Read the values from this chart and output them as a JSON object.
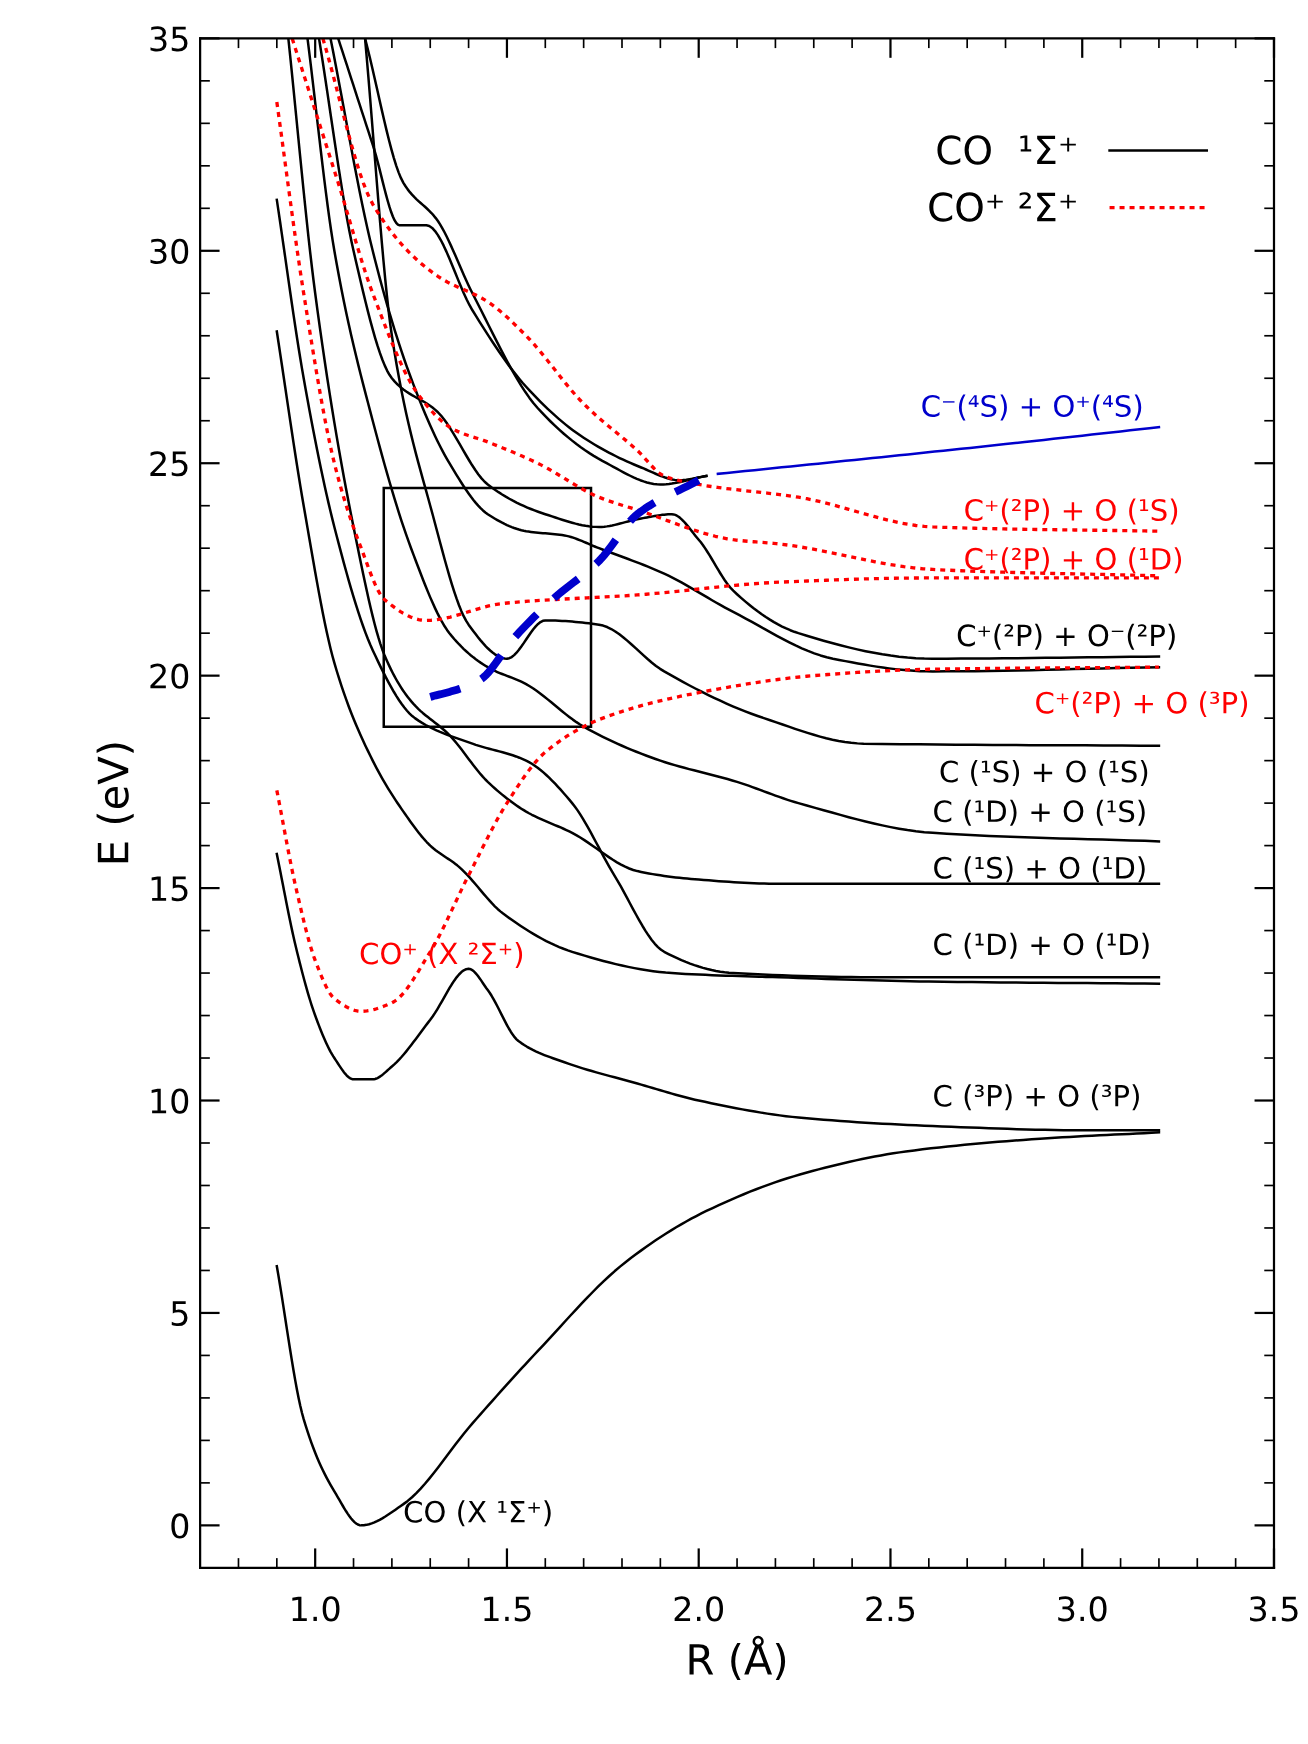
{
  "chart_data": {
    "type": "line",
    "xlabel": "R (Å)",
    "ylabel": "E (eV)",
    "xlim": [
      0.7,
      3.5
    ],
    "ylim": [
      -1,
      35
    ],
    "xticks": [
      {
        "value": 1.0,
        "label": "1.0"
      },
      {
        "value": 1.5,
        "label": "1.5"
      },
      {
        "value": 2.0,
        "label": "2.0"
      },
      {
        "value": 2.5,
        "label": "2.5"
      },
      {
        "value": 3.0,
        "label": "3.0"
      },
      {
        "value": 3.5,
        "label": "3.5"
      }
    ],
    "yticks": [
      0,
      5,
      10,
      15,
      20,
      25,
      30,
      35
    ],
    "grid": false,
    "legend": "top right",
    "series": [
      {
        "name": "CO  ¹Σ⁺",
        "color": "#000000",
        "line_style": "solid",
        "x": [
          0.9,
          0.97,
          1.05,
          1.12,
          1.23,
          1.41,
          1.58,
          1.81,
          2.02,
          2.28,
          2.54,
          2.89,
          3.2
        ],
        "values": [
          6.1,
          2.5,
          0.8,
          0.0,
          0.5,
          2.4,
          4.1,
          6.2,
          7.4,
          8.3,
          8.8,
          9.1,
          9.25
        ]
      },
      {
        "color": "#000000",
        "line_style": "solid",
        "x": [
          0.9,
          0.95,
          1.0,
          1.05,
          1.1,
          1.15,
          1.2,
          1.3,
          1.4,
          1.45,
          1.53,
          1.65,
          1.84,
          2.0,
          2.26,
          2.61,
          3.0,
          3.2
        ],
        "values": [
          15.8,
          13.6,
          12.0,
          11.0,
          10.5,
          10.5,
          10.8,
          11.9,
          13.1,
          12.6,
          11.4,
          10.9,
          10.4,
          10.0,
          9.6,
          9.4,
          9.3,
          9.3
        ]
      },
      {
        "color": "#000000",
        "line_style": "solid",
        "x": [
          0.9,
          0.97,
          1.05,
          1.15,
          1.23,
          1.3,
          1.375,
          1.49,
          1.67,
          1.93,
          2.21,
          2.6,
          3.2
        ],
        "values": [
          28.1,
          24.0,
          20.3,
          18.0,
          16.8,
          16.0,
          15.5,
          14.4,
          13.5,
          13.0,
          12.9,
          12.8,
          12.75
        ]
      },
      {
        "color": "#000000",
        "line_style": "solid",
        "x": [
          0.9,
          0.97,
          1.05,
          1.15,
          1.26,
          1.41,
          1.55,
          1.67,
          1.78,
          1.91,
          2.09,
          2.5,
          3.2
        ],
        "values": [
          31.2,
          27.0,
          23.5,
          20.6,
          19.0,
          18.4,
          18.0,
          17.0,
          15.3,
          13.5,
          13.0,
          12.9,
          12.9
        ]
      },
      {
        "color": "#000000",
        "line_style": "solid",
        "x": [
          0.93,
          1.0,
          1.1,
          1.18,
          1.25,
          1.35,
          1.45,
          1.55,
          1.67,
          1.84,
          2.0,
          2.21,
          2.6,
          3.2
        ],
        "values": [
          35,
          29,
          23.5,
          20.5,
          19.4,
          18.6,
          17.5,
          16.8,
          16.3,
          15.4,
          15.2,
          15.1,
          15.1,
          15.1
        ]
      },
      {
        "color": "#000000",
        "line_style": "solid",
        "x": [
          0.98,
          1.05,
          1.15,
          1.25,
          1.35,
          1.45,
          1.55,
          1.7,
          1.9,
          2.1,
          2.26,
          2.61,
          3.2
        ],
        "values": [
          35,
          30,
          26,
          23,
          21,
          20.2,
          19.8,
          18.8,
          18.0,
          17.5,
          17.0,
          16.3,
          16.1
        ]
      },
      {
        "color": "#000000",
        "line_style": "solid",
        "x": [
          1.13,
          1.2,
          1.3,
          1.4,
          1.5,
          1.6,
          1.74,
          1.91,
          2.17,
          2.43,
          3.2
        ],
        "values": [
          35,
          28,
          24.0,
          21.2,
          20.4,
          21.3,
          21.2,
          20.1,
          19.0,
          18.4,
          18.35
        ]
      },
      {
        "color": "#000000",
        "line_style": "solid",
        "x": [
          1.04,
          1.15,
          1.25,
          1.35,
          1.45,
          1.55,
          1.65,
          1.74,
          1.91,
          2.09,
          2.35,
          2.61,
          3.2
        ],
        "values": [
          35,
          30,
          27,
          25,
          23.8,
          23.4,
          23.3,
          23.0,
          22.4,
          21.5,
          20.4,
          20.1,
          20.2
        ]
      },
      {
        "color": "#000000",
        "line_style": "solid",
        "x": [
          1.01,
          1.1,
          1.2,
          1.32,
          1.45,
          1.6,
          1.74,
          1.85,
          1.93,
          2.0,
          2.09,
          2.26,
          2.61,
          3.2
        ],
        "values": [
          35,
          30,
          27,
          26.2,
          24.5,
          23.8,
          23.5,
          23.7,
          23.8,
          23.2,
          22.0,
          21.0,
          20.4,
          20.45
        ]
      },
      {
        "color": "#000000",
        "line_style": "solid",
        "x": [
          1.13,
          1.23,
          1.32,
          1.41,
          1.58,
          1.76,
          1.9,
          2.02
        ],
        "values": [
          35,
          31.6,
          30.7,
          29.0,
          26.3,
          25.0,
          24.5,
          24.7
        ]
      },
      {
        "color": "#000000",
        "line_style": "solid",
        "x": [
          1.06,
          1.15,
          1.22,
          1.29,
          1.41,
          1.55,
          1.7,
          1.85,
          1.95,
          2.02
        ],
        "values": [
          35,
          32.5,
          30.6,
          30.6,
          28.6,
          26.8,
          25.6,
          24.9,
          24.6,
          24.7
        ]
      },
      {
        "name": "CO⁺ ²Σ⁺",
        "color": "#ff0000",
        "line_style": "dotted",
        "x": [
          0.9,
          0.95,
          1.0,
          1.05,
          1.12,
          1.2,
          1.3,
          1.4,
          1.5,
          1.6,
          1.75,
          2.0,
          2.3,
          2.6,
          3.2
        ],
        "values": [
          17.3,
          15.0,
          13.3,
          12.4,
          12.1,
          12.3,
          13.5,
          15.3,
          17.0,
          18.2,
          19.0,
          19.6,
          20.0,
          20.15,
          20.2
        ]
      },
      {
        "color": "#ff0000",
        "line_style": "dotted",
        "x": [
          0.9,
          0.97,
          1.05,
          1.12,
          1.18,
          1.29,
          1.49,
          1.84,
          2.21,
          2.6,
          3.2
        ],
        "values": [
          33.5,
          29,
          25,
          23,
          21.8,
          21.3,
          21.7,
          21.9,
          22.2,
          22.3,
          22.3
        ]
      },
      {
        "color": "#ff0000",
        "line_style": "dotted",
        "x": [
          0.94,
          1.06,
          1.15,
          1.27,
          1.36,
          1.45,
          1.58,
          1.74,
          1.84,
          2.09,
          2.21,
          2.61,
          3.2
        ],
        "values": [
          35,
          31.6,
          29,
          26.6,
          25.8,
          25.5,
          25.0,
          24.2,
          23.9,
          23.2,
          23.1,
          22.5,
          22.35
        ]
      },
      {
        "color": "#ff0000",
        "line_style": "dotted",
        "x": [
          1.02,
          1.15,
          1.32,
          1.45,
          1.55,
          1.7,
          1.84,
          1.91,
          2.0,
          2.26,
          2.61,
          3.2
        ],
        "values": [
          35,
          31.1,
          29.4,
          28.8,
          28.0,
          26.4,
          25.3,
          24.7,
          24.5,
          24.2,
          23.5,
          23.4
        ]
      },
      {
        "color": "#0000cc",
        "line_style": "dashed",
        "x": [
          1.3,
          1.38,
          1.43,
          1.52,
          1.62,
          1.74,
          1.84,
          2.0
        ],
        "values": [
          19.5,
          19.7,
          19.9,
          20.9,
          21.8,
          22.7,
          23.8,
          24.6
        ]
      },
      {
        "color": "#0000cc",
        "line_style": "solid",
        "x": [
          2.05,
          2.43,
          2.8,
          3.2
        ],
        "values": [
          24.75,
          25.1,
          25.45,
          25.85
        ]
      }
    ],
    "annotations": [
      "C⁻(⁴S) + O⁺(⁴S)",
      "C⁺(²P) + O (¹S)",
      "C⁺(²P) + O (¹D)",
      "C⁺(²P) + O⁻(²P)",
      "C⁺(²P) + O (³P)",
      "C (¹S) + O (¹S)",
      "C (¹D) + O (¹S)",
      "C (¹S) + O (¹D)",
      "C (¹D) + O (¹D)",
      "C (³P) + O (³P)",
      "CO⁺ (X ²Σ⁺)",
      "CO (X ¹Σ⁺)"
    ]
  }
}
